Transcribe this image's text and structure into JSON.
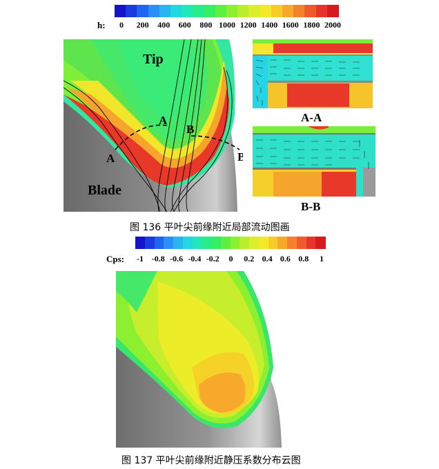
{
  "figure136": {
    "colorbar": {
      "label": "h:",
      "ticks": [
        "0",
        "200",
        "400",
        "600",
        "800",
        "1000",
        "1200",
        "1400",
        "1600",
        "1800",
        "2000"
      ],
      "colors": [
        "#1414c8",
        "#1a3be0",
        "#1e66f0",
        "#2a90f5",
        "#28b6f0",
        "#20d8e0",
        "#20e8b8",
        "#26ec8c",
        "#36ef60",
        "#5ef040",
        "#8cef30",
        "#b8ee2c",
        "#dcee2a",
        "#f4e828",
        "#f8cc28",
        "#f8a82a",
        "#f4822c",
        "#ee5a2c",
        "#e6342a",
        "#d81a1e"
      ]
    },
    "labels": {
      "tip": "Tip",
      "blade": "Blade",
      "section_a": "A",
      "section_b": "B"
    },
    "section_aa": "A-A",
    "section_bb": "B-B",
    "caption": "图 136 平叶尖前缘附近局部流动图画"
  },
  "figure137": {
    "colorbar": {
      "label": "Cps:",
      "ticks": [
        "-1",
        "-0.8",
        "-0.6",
        "-0.4",
        "-0.2",
        "0",
        "0.2",
        "0.4",
        "0.6",
        "0.8",
        "1"
      ],
      "colors": [
        "#1414c8",
        "#1a3be0",
        "#1e66f0",
        "#2a90f5",
        "#28b6f0",
        "#20d8e0",
        "#20e8b8",
        "#26ec8c",
        "#36ef60",
        "#5ef040",
        "#8cef30",
        "#b8ee2c",
        "#dcee2a",
        "#f4e828",
        "#f8cc28",
        "#f8a82a",
        "#f4822c",
        "#ee5a2c",
        "#e6342a",
        "#d81a1e"
      ]
    },
    "caption": "图 137 平叶尖前缘附近静压系数分布云图"
  }
}
